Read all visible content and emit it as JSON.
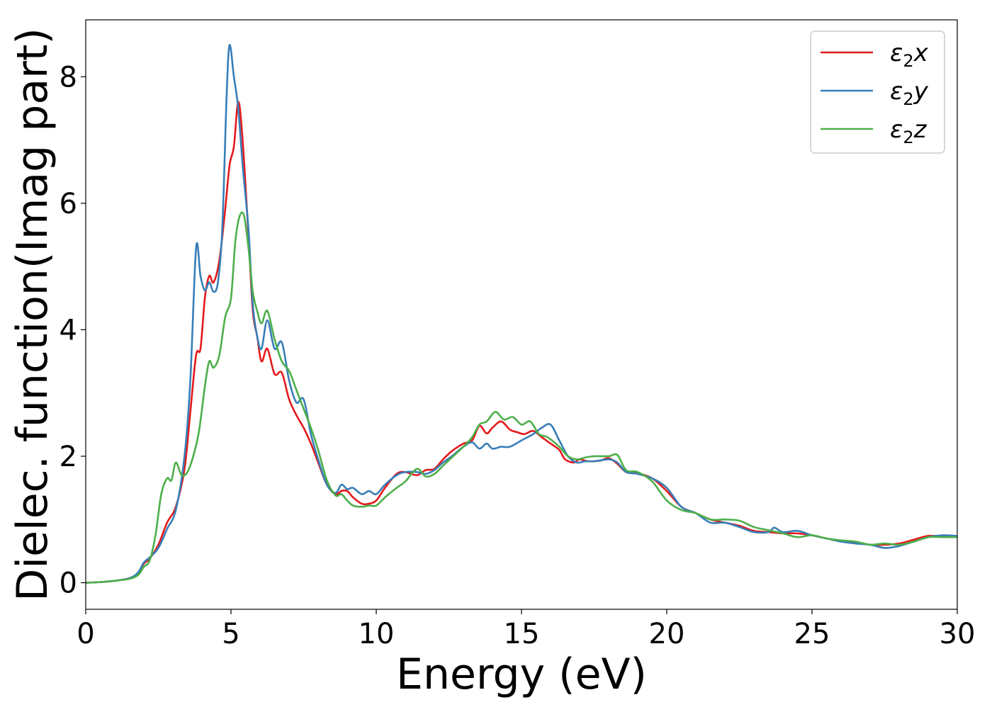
{
  "chart_data": {
    "type": "line",
    "xlabel": "Energy (eV)",
    "ylabel": "Dielec. function(Imag part)",
    "xlim": [
      0,
      30
    ],
    "ylim": [
      -0.42,
      8.9
    ],
    "x_ticks": [
      0,
      5,
      10,
      15,
      20,
      25,
      30
    ],
    "y_ticks": [
      0,
      2,
      4,
      6,
      8
    ],
    "x_tick_labels": [
      "0",
      "5",
      "10",
      "15",
      "20",
      "25",
      "30"
    ],
    "y_tick_labels": [
      "0",
      "2",
      "4",
      "6",
      "8"
    ],
    "grid": false,
    "legend_position": "top-right",
    "series": [
      {
        "name": "ε₂x",
        "legend": {
          "base": "ε",
          "sub": "2",
          "var": "x"
        },
        "color": "#e41a1c",
        "points": [
          [
            0,
            0
          ],
          [
            0.5,
            0.01
          ],
          [
            1.0,
            0.03
          ],
          [
            1.5,
            0.07
          ],
          [
            1.8,
            0.15
          ],
          [
            2.0,
            0.3
          ],
          [
            2.2,
            0.38
          ],
          [
            2.5,
            0.6
          ],
          [
            2.8,
            0.95
          ],
          [
            3.1,
            1.2
          ],
          [
            3.4,
            1.8
          ],
          [
            3.6,
            2.7
          ],
          [
            3.8,
            3.6
          ],
          [
            3.95,
            3.7
          ],
          [
            4.1,
            4.5
          ],
          [
            4.25,
            4.85
          ],
          [
            4.4,
            4.75
          ],
          [
            4.6,
            5.1
          ],
          [
            4.8,
            5.9
          ],
          [
            4.95,
            6.6
          ],
          [
            5.1,
            6.9
          ],
          [
            5.25,
            7.6
          ],
          [
            5.4,
            7.0
          ],
          [
            5.6,
            5.5
          ],
          [
            5.75,
            4.3
          ],
          [
            5.9,
            3.9
          ],
          [
            6.05,
            3.5
          ],
          [
            6.25,
            3.7
          ],
          [
            6.5,
            3.3
          ],
          [
            6.75,
            3.32
          ],
          [
            7.0,
            2.9
          ],
          [
            7.25,
            2.65
          ],
          [
            7.5,
            2.45
          ],
          [
            7.75,
            2.2
          ],
          [
            8.0,
            1.9
          ],
          [
            8.3,
            1.55
          ],
          [
            8.6,
            1.4
          ],
          [
            8.8,
            1.45
          ],
          [
            9.0,
            1.45
          ],
          [
            9.2,
            1.35
          ],
          [
            9.5,
            1.25
          ],
          [
            9.75,
            1.25
          ],
          [
            10.0,
            1.3
          ],
          [
            10.3,
            1.5
          ],
          [
            10.7,
            1.72
          ],
          [
            11.0,
            1.75
          ],
          [
            11.4,
            1.7
          ],
          [
            11.7,
            1.78
          ],
          [
            12.0,
            1.8
          ],
          [
            12.3,
            1.95
          ],
          [
            12.6,
            2.08
          ],
          [
            13.0,
            2.2
          ],
          [
            13.3,
            2.25
          ],
          [
            13.55,
            2.48
          ],
          [
            13.8,
            2.36
          ],
          [
            14.0,
            2.45
          ],
          [
            14.3,
            2.55
          ],
          [
            14.6,
            2.42
          ],
          [
            14.85,
            2.38
          ],
          [
            15.1,
            2.35
          ],
          [
            15.4,
            2.4
          ],
          [
            15.7,
            2.3
          ],
          [
            16.0,
            2.2
          ],
          [
            16.3,
            2.1
          ],
          [
            16.5,
            1.95
          ],
          [
            16.8,
            1.9
          ],
          [
            17.0,
            1.95
          ],
          [
            17.3,
            1.92
          ],
          [
            17.7,
            1.93
          ],
          [
            18.0,
            1.97
          ],
          [
            18.3,
            1.88
          ],
          [
            18.6,
            1.75
          ],
          [
            19.0,
            1.73
          ],
          [
            19.5,
            1.65
          ],
          [
            20.0,
            1.45
          ],
          [
            20.5,
            1.2
          ],
          [
            21.0,
            1.1
          ],
          [
            21.5,
            1.0
          ],
          [
            22.0,
            0.95
          ],
          [
            22.5,
            0.9
          ],
          [
            23.0,
            0.82
          ],
          [
            23.5,
            0.8
          ],
          [
            24.0,
            0.78
          ],
          [
            24.5,
            0.78
          ],
          [
            25.0,
            0.75
          ],
          [
            25.5,
            0.7
          ],
          [
            26.0,
            0.66
          ],
          [
            26.5,
            0.64
          ],
          [
            27.0,
            0.6
          ],
          [
            27.5,
            0.6
          ],
          [
            28.0,
            0.62
          ],
          [
            28.5,
            0.68
          ],
          [
            29.0,
            0.74
          ],
          [
            29.5,
            0.73
          ],
          [
            30.0,
            0.73
          ]
        ]
      },
      {
        "name": "ε₂y",
        "legend": {
          "base": "ε",
          "sub": "2",
          "var": "y"
        },
        "color": "#377eb8",
        "points": [
          [
            0,
            0
          ],
          [
            0.5,
            0.01
          ],
          [
            1.0,
            0.03
          ],
          [
            1.5,
            0.07
          ],
          [
            1.8,
            0.16
          ],
          [
            2.0,
            0.32
          ],
          [
            2.2,
            0.4
          ],
          [
            2.5,
            0.55
          ],
          [
            2.8,
            0.85
          ],
          [
            3.1,
            1.15
          ],
          [
            3.4,
            2.0
          ],
          [
            3.6,
            3.2
          ],
          [
            3.8,
            5.3
          ],
          [
            3.95,
            4.85
          ],
          [
            4.1,
            4.62
          ],
          [
            4.25,
            4.75
          ],
          [
            4.4,
            4.6
          ],
          [
            4.55,
            4.75
          ],
          [
            4.7,
            5.6
          ],
          [
            4.85,
            7.7
          ],
          [
            4.95,
            8.5
          ],
          [
            5.1,
            8.0
          ],
          [
            5.25,
            7.5
          ],
          [
            5.4,
            6.6
          ],
          [
            5.6,
            5.6
          ],
          [
            5.75,
            4.4
          ],
          [
            5.9,
            3.9
          ],
          [
            6.05,
            3.7
          ],
          [
            6.25,
            4.15
          ],
          [
            6.5,
            3.7
          ],
          [
            6.75,
            3.8
          ],
          [
            7.0,
            3.2
          ],
          [
            7.25,
            2.85
          ],
          [
            7.5,
            2.9
          ],
          [
            7.75,
            2.35
          ],
          [
            8.0,
            1.95
          ],
          [
            8.3,
            1.55
          ],
          [
            8.6,
            1.42
          ],
          [
            8.8,
            1.55
          ],
          [
            9.0,
            1.48
          ],
          [
            9.2,
            1.5
          ],
          [
            9.5,
            1.4
          ],
          [
            9.75,
            1.45
          ],
          [
            10.0,
            1.4
          ],
          [
            10.3,
            1.55
          ],
          [
            10.7,
            1.7
          ],
          [
            11.0,
            1.75
          ],
          [
            11.4,
            1.75
          ],
          [
            11.7,
            1.72
          ],
          [
            12.0,
            1.78
          ],
          [
            12.3,
            1.9
          ],
          [
            12.6,
            2.0
          ],
          [
            13.0,
            2.15
          ],
          [
            13.3,
            2.22
          ],
          [
            13.55,
            2.12
          ],
          [
            13.8,
            2.2
          ],
          [
            14.0,
            2.12
          ],
          [
            14.3,
            2.15
          ],
          [
            14.6,
            2.15
          ],
          [
            15.0,
            2.25
          ],
          [
            15.4,
            2.35
          ],
          [
            15.7,
            2.45
          ],
          [
            16.0,
            2.5
          ],
          [
            16.3,
            2.25
          ],
          [
            16.6,
            2.0
          ],
          [
            16.9,
            1.9
          ],
          [
            17.2,
            1.92
          ],
          [
            17.5,
            1.92
          ],
          [
            18.0,
            1.95
          ],
          [
            18.3,
            1.9
          ],
          [
            18.6,
            1.75
          ],
          [
            19.0,
            1.72
          ],
          [
            19.5,
            1.65
          ],
          [
            20.0,
            1.5
          ],
          [
            20.5,
            1.2
          ],
          [
            21.0,
            1.1
          ],
          [
            21.5,
            0.95
          ],
          [
            22.0,
            0.95
          ],
          [
            22.5,
            0.88
          ],
          [
            23.0,
            0.8
          ],
          [
            23.5,
            0.8
          ],
          [
            23.7,
            0.87
          ],
          [
            24.0,
            0.8
          ],
          [
            24.5,
            0.82
          ],
          [
            25.0,
            0.75
          ],
          [
            25.5,
            0.7
          ],
          [
            26.0,
            0.65
          ],
          [
            26.5,
            0.62
          ],
          [
            27.0,
            0.6
          ],
          [
            27.5,
            0.55
          ],
          [
            28.0,
            0.58
          ],
          [
            28.5,
            0.65
          ],
          [
            29.0,
            0.72
          ],
          [
            29.5,
            0.75
          ],
          [
            30.0,
            0.74
          ]
        ]
      },
      {
        "name": "ε₂z",
        "legend": {
          "base": "ε",
          "sub": "2",
          "var": "z"
        },
        "color": "#4daf4a",
        "points": [
          [
            0,
            0
          ],
          [
            0.5,
            0.01
          ],
          [
            1.0,
            0.03
          ],
          [
            1.5,
            0.06
          ],
          [
            1.8,
            0.12
          ],
          [
            2.0,
            0.25
          ],
          [
            2.2,
            0.35
          ],
          [
            2.4,
            0.75
          ],
          [
            2.6,
            1.4
          ],
          [
            2.8,
            1.65
          ],
          [
            2.95,
            1.62
          ],
          [
            3.1,
            1.9
          ],
          [
            3.3,
            1.7
          ],
          [
            3.5,
            1.75
          ],
          [
            3.7,
            2.0
          ],
          [
            3.9,
            2.4
          ],
          [
            4.1,
            3.1
          ],
          [
            4.25,
            3.5
          ],
          [
            4.4,
            3.4
          ],
          [
            4.6,
            3.6
          ],
          [
            4.8,
            4.2
          ],
          [
            5.0,
            4.5
          ],
          [
            5.15,
            5.4
          ],
          [
            5.3,
            5.8
          ],
          [
            5.45,
            5.8
          ],
          [
            5.6,
            5.3
          ],
          [
            5.75,
            4.6
          ],
          [
            5.9,
            4.3
          ],
          [
            6.05,
            4.1
          ],
          [
            6.25,
            4.3
          ],
          [
            6.5,
            3.85
          ],
          [
            6.75,
            3.5
          ],
          [
            7.0,
            3.35
          ],
          [
            7.25,
            3.05
          ],
          [
            7.5,
            2.75
          ],
          [
            7.75,
            2.45
          ],
          [
            8.0,
            2.1
          ],
          [
            8.3,
            1.62
          ],
          [
            8.6,
            1.38
          ],
          [
            8.8,
            1.4
          ],
          [
            9.0,
            1.3
          ],
          [
            9.2,
            1.22
          ],
          [
            9.5,
            1.2
          ],
          [
            9.75,
            1.22
          ],
          [
            10.0,
            1.22
          ],
          [
            10.3,
            1.35
          ],
          [
            10.7,
            1.5
          ],
          [
            11.0,
            1.6
          ],
          [
            11.4,
            1.8
          ],
          [
            11.7,
            1.68
          ],
          [
            12.0,
            1.72
          ],
          [
            12.3,
            1.85
          ],
          [
            12.6,
            1.98
          ],
          [
            13.0,
            2.15
          ],
          [
            13.3,
            2.3
          ],
          [
            13.55,
            2.5
          ],
          [
            13.8,
            2.55
          ],
          [
            14.1,
            2.7
          ],
          [
            14.4,
            2.58
          ],
          [
            14.7,
            2.62
          ],
          [
            15.0,
            2.5
          ],
          [
            15.3,
            2.55
          ],
          [
            15.6,
            2.35
          ],
          [
            15.9,
            2.3
          ],
          [
            16.3,
            2.15
          ],
          [
            16.6,
            2.0
          ],
          [
            16.9,
            1.95
          ],
          [
            17.2,
            1.98
          ],
          [
            17.5,
            2.0
          ],
          [
            18.0,
            2.0
          ],
          [
            18.3,
            2.02
          ],
          [
            18.6,
            1.78
          ],
          [
            19.0,
            1.75
          ],
          [
            19.5,
            1.6
          ],
          [
            20.0,
            1.3
          ],
          [
            20.5,
            1.15
          ],
          [
            21.0,
            1.1
          ],
          [
            21.5,
            1.0
          ],
          [
            22.0,
            1.0
          ],
          [
            22.5,
            0.98
          ],
          [
            23.0,
            0.88
          ],
          [
            23.5,
            0.83
          ],
          [
            24.0,
            0.78
          ],
          [
            24.5,
            0.72
          ],
          [
            25.0,
            0.75
          ],
          [
            25.5,
            0.7
          ],
          [
            26.0,
            0.67
          ],
          [
            26.5,
            0.65
          ],
          [
            27.0,
            0.6
          ],
          [
            27.5,
            0.62
          ],
          [
            28.0,
            0.6
          ],
          [
            28.5,
            0.65
          ],
          [
            29.0,
            0.72
          ],
          [
            29.5,
            0.72
          ],
          [
            30.0,
            0.72
          ]
        ]
      }
    ]
  }
}
